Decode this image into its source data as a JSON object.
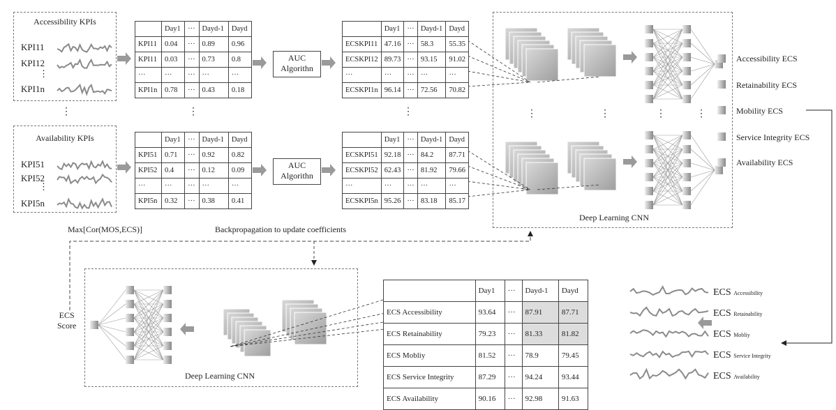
{
  "groups": [
    {
      "title": "Accessibility KPIs",
      "kpis": [
        "KPI11",
        "KPI12",
        "⋮",
        "KPI1n"
      ],
      "kpi_table": {
        "header": [
          "",
          "Day1",
          "···",
          "Dayd-1",
          "Dayd"
        ],
        "rows": [
          [
            "KPI11",
            "0.04",
            "···",
            "0.89",
            "0.96"
          ],
          [
            "KPI11",
            "0.03",
            "···",
            "0.73",
            "0.8"
          ],
          [
            "···",
            "···",
            "···",
            "···",
            "···"
          ],
          [
            "KPI1n",
            "0.78",
            "···",
            "0.43",
            "0.18"
          ]
        ]
      },
      "algorithm": [
        "AUC",
        "Algorithn"
      ],
      "ecs_table": {
        "header": [
          "",
          "Day1",
          "···",
          "Dayd-1",
          "Dayd"
        ],
        "rows": [
          [
            "ECSKPI11",
            "47.16",
            "···",
            "58.3",
            "55.35"
          ],
          [
            "ECSKPI12",
            "89.73",
            "···",
            "93.15",
            "91.02"
          ],
          [
            "···",
            "···",
            "···",
            "···",
            "···"
          ],
          [
            "ECSKPI1n",
            "96.14",
            "···",
            "72.56",
            "70.82"
          ]
        ]
      }
    },
    {
      "title": "Availability KPIs",
      "kpis": [
        "KPI51",
        "KPI52",
        "⋮",
        "KPI5n"
      ],
      "kpi_table": {
        "header": [
          "",
          "Day1",
          "···",
          "Dayd-1",
          "Dayd"
        ],
        "rows": [
          [
            "KPI51",
            "0.71",
            "···",
            "0.92",
            "0.82"
          ],
          [
            "KPI52",
            "0.4",
            "···",
            "0.12",
            "0.09"
          ],
          [
            "···",
            "···",
            "···",
            "···",
            "···"
          ],
          [
            "KPI5n",
            "0.32",
            "···",
            "0.38",
            "0.41"
          ]
        ]
      },
      "algorithm": [
        "AUC",
        "Algorithn"
      ],
      "ecs_table": {
        "header": [
          "",
          "Day1",
          "···",
          "Dayd-1",
          "Dayd"
        ],
        "rows": [
          [
            "ECSKPI51",
            "92.18",
            "···",
            "84.2",
            "87.71"
          ],
          [
            "ECSKPI52",
            "62.43",
            "···",
            "81.92",
            "79.66"
          ],
          [
            "···",
            "···",
            "···",
            "···",
            "···"
          ],
          [
            "ECSKPI5n",
            "95.26",
            "···",
            "83.18",
            "85.17"
          ]
        ]
      }
    }
  ],
  "vdots": "⋮",
  "cnn_top_label": "Deep Learning CNN",
  "ecs_outputs": [
    "Accessibility ECS",
    "Retainability ECS",
    "Mobility ECS",
    "Service Integrity ECS",
    "Availability ECS"
  ],
  "feedback_left": "Max[Cor(MOS,ECS)]",
  "feedback_mid": "Backpropagation to update coefficients",
  "final_output": [
    "ECS",
    "Score"
  ],
  "cnn_bottom_label": "Deep Learning CNN",
  "summary_table": {
    "header": [
      "",
      "Day1",
      "···",
      "Dayd-1",
      "Dayd"
    ],
    "rows": [
      [
        "ECS Accessibility",
        "93.64",
        "···",
        "87.91",
        "87.71"
      ],
      [
        "ECS Retainability",
        "79.23",
        "···",
        "81.33",
        "81.82"
      ],
      [
        "ECS Mobliy",
        "81.52",
        "···",
        "78.9",
        "79.45"
      ],
      [
        "ECS Service Integrity",
        "87.29",
        "···",
        "94.24",
        "93.44"
      ],
      [
        "ECS Availability",
        "90.16",
        "···",
        "92.98",
        "91.63"
      ]
    ]
  },
  "ecs_series": [
    {
      "main": "ECS",
      "sub": "Accessibility"
    },
    {
      "main": "ECS",
      "sub": "Retainability"
    },
    {
      "main": "ECS",
      "sub": "Mobliy"
    },
    {
      "main": "ECS",
      "sub": "Service Integrity"
    },
    {
      "main": "ECS",
      "sub": "Availability"
    }
  ],
  "colors": {
    "box_border": "#777777",
    "arrow": "#9a9a9a",
    "highlight": "#dddddd",
    "line": "#555555"
  }
}
